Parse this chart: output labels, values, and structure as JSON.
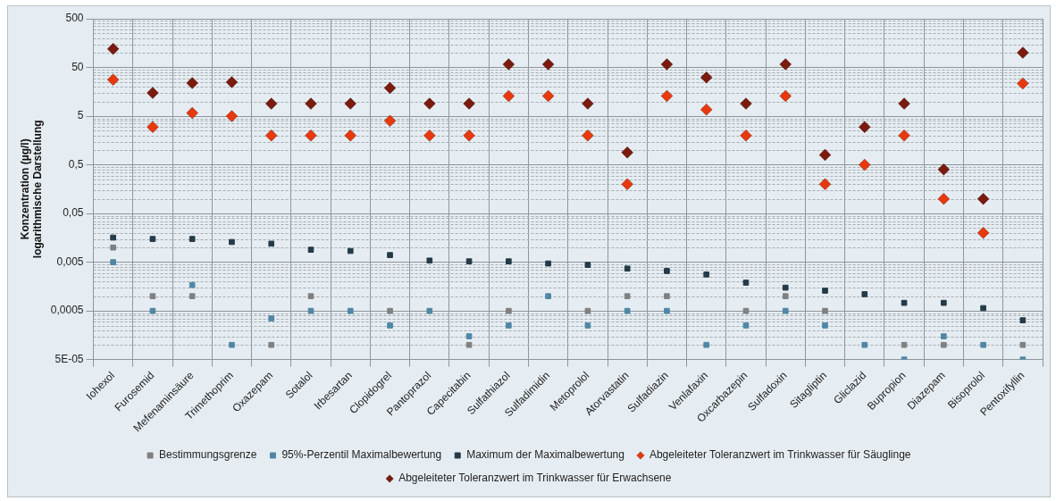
{
  "chart_data": {
    "type": "scatter",
    "ylabel": "Konzentration (µg/l)\nlogarithmische Darstellung",
    "categories": [
      "Iohexol",
      "Furosemid",
      "Mefenaminsäure",
      "Trimethoprim",
      "Oxazepam",
      "Sotalol",
      "Irbesartan",
      "Clopidogrel",
      "Pantoprazol",
      "Capecitabin",
      "Sulfathiazol",
      "Sulfadimidin",
      "Metoprolol",
      "Atorvastatin",
      "Sulfadiazin",
      "Venlafaxin",
      "Oxcarbazepin",
      "Sulfadoxin",
      "Sitagliptin",
      "Gliclazid",
      "Bupropion",
      "Diazepam",
      "Bisoprolol",
      "Pentoxifyllin"
    ],
    "series": [
      {
        "name": "Bestimmungsgrenze",
        "color": "#808080",
        "marker": "square",
        "values": [
          0.01,
          0.001,
          0.001,
          null,
          0.0001,
          0.001,
          null,
          0.0005,
          null,
          0.0001,
          0.0005,
          null,
          0.0005,
          0.001,
          0.001,
          null,
          0.0005,
          0.001,
          0.0005,
          null,
          0.0001,
          0.0001,
          null,
          0.0001
        ]
      },
      {
        "name": "95%-Perzentil Maximalbewertung",
        "color": "#4f87a5",
        "marker": "square",
        "values": [
          0.005,
          0.0005,
          0.0017,
          0.0001,
          0.00035,
          0.0005,
          0.0005,
          0.00025,
          0.0005,
          0.00015,
          0.00025,
          0.001,
          0.00025,
          0.0005,
          0.0005,
          0.0001,
          0.00025,
          0.0005,
          0.00025,
          0.0001,
          5e-05,
          0.00015,
          0.0001,
          5e-05
        ]
      },
      {
        "name": "Maximum der Maximalbewertung",
        "color": "#243a48",
        "marker": "square",
        "values": [
          0.016,
          0.015,
          0.015,
          0.013,
          0.012,
          0.009,
          0.0085,
          0.007,
          0.0054,
          0.0052,
          0.0052,
          0.0047,
          0.0044,
          0.0037,
          0.0033,
          0.0028,
          0.0019,
          0.0015,
          0.0013,
          0.0011,
          0.00073,
          0.00073,
          0.00057,
          0.00032
        ]
      },
      {
        "name": "Abgeleiteter Toleranzwert im Trinkwasser für Säuglinge",
        "color": "#e8380d",
        "marker": "diamond",
        "values": [
          28,
          3,
          5.8,
          5,
          2,
          2,
          2,
          4,
          2,
          2,
          13,
          13,
          2,
          0.2,
          13,
          6.8,
          2,
          13,
          0.2,
          0.5,
          2,
          0.1,
          0.02,
          23.5
        ]
      },
      {
        "name": "Abgeleiteter Toleranzwert im Trinkwasser für Erwachsene",
        "color": "#7b1a0e",
        "marker": "diamond",
        "values": [
          120,
          15,
          24,
          25,
          9,
          9,
          9,
          19,
          9,
          9,
          58,
          58,
          9,
          0.9,
          58,
          31,
          9,
          58,
          0.8,
          3,
          9,
          0.4,
          0.1,
          100
        ]
      }
    ],
    "log": "y",
    "ylim": [
      5e-05,
      500
    ],
    "yticks": [
      {
        "value": 5e-05,
        "label": "5E-05"
      },
      {
        "value": 0.0005,
        "label": "0,0005"
      },
      {
        "value": 0.005,
        "label": "0,005"
      },
      {
        "value": 0.05,
        "label": "0,05"
      },
      {
        "value": 0.5,
        "label": "0,5"
      },
      5,
      50,
      500
    ],
    "grid": true,
    "legend": "bottom"
  }
}
